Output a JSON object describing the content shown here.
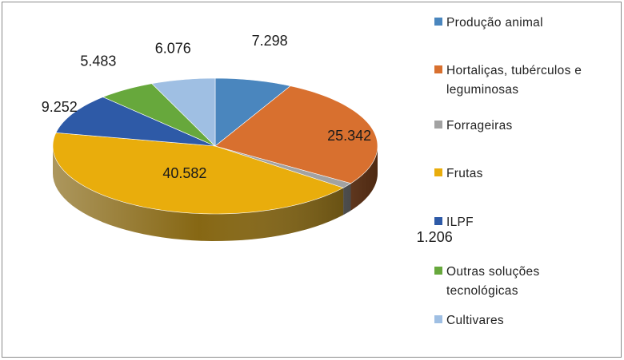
{
  "chart_data": {
    "type": "pie",
    "style": "3d",
    "categories": [
      "Produção animal",
      "Hortaliças, tubérculos e leguminosas",
      "Forrageiras",
      "Frutas",
      "ILPF",
      "Outras soluções tecnológicas",
      "Cultivares"
    ],
    "values": [
      7298,
      25342,
      1206,
      40582,
      9252,
      5483,
      6076
    ],
    "value_labels": [
      "7.298",
      "25.342",
      "1.206",
      "40.582",
      "9.252",
      "5.483",
      "6.076"
    ],
    "colors": [
      "#4a86be",
      "#d8702f",
      "#a2a2a2",
      "#e9ad0c",
      "#2e5aa7",
      "#67a83c",
      "#9fbfe3"
    ],
    "legend_position": "right",
    "title": ""
  }
}
